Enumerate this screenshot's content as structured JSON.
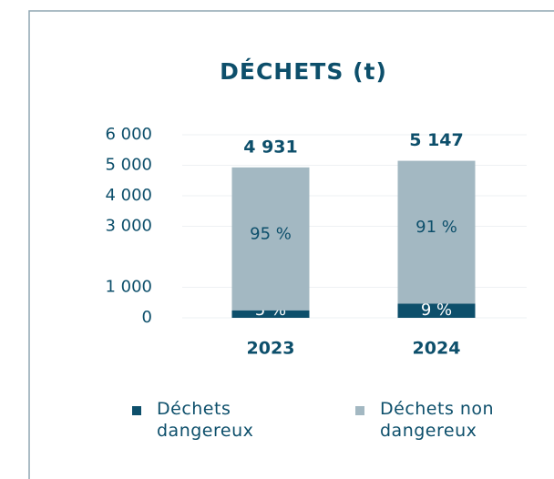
{
  "chart_data": {
    "type": "stacked_bar",
    "title": "DÉCHETS (t)",
    "categories": [
      "2023",
      "2024"
    ],
    "series": [
      {
        "name": "Déchets dangereux",
        "color": "#0d4f6b",
        "values": [
          247,
          463
        ],
        "value_labels": [
          "5 %",
          "9 %"
        ]
      },
      {
        "name": "Déchets non dangereux",
        "color": "#a3b8c2",
        "values": [
          4684,
          4684
        ],
        "value_labels": [
          "95 %",
          "91 %"
        ]
      }
    ],
    "totals": [
      4931,
      5147
    ],
    "total_labels": [
      "4 931",
      "5 147"
    ],
    "ylim": [
      0,
      6000
    ],
    "yticks": [
      {
        "value": 0,
        "label": "0"
      },
      {
        "value": 1000,
        "label": "1 000"
      },
      {
        "value": 3000,
        "label": "3 000"
      },
      {
        "value": 4000,
        "label": "4 000"
      },
      {
        "value": 5000,
        "label": "5 000"
      },
      {
        "value": 6000,
        "label": "6 000"
      }
    ],
    "grid": true
  }
}
